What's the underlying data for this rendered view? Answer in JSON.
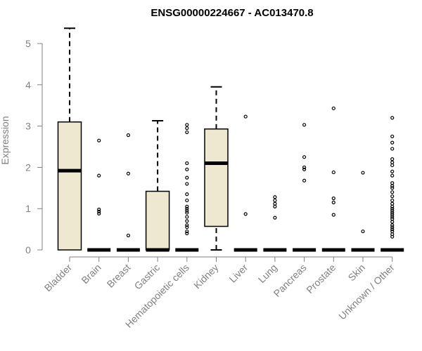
{
  "chart_data": {
    "type": "box",
    "title": "ENSG00000224667 - AC013470.8",
    "ylabel": "Expression",
    "xlabel": "",
    "ylim": [
      0,
      5.5
    ],
    "yticks": [
      0,
      1,
      2,
      3,
      4,
      5
    ],
    "grid": false,
    "box_fill": "#EDE8CF",
    "categories": [
      "Bladder",
      "Brain",
      "Breast",
      "Gastric",
      "Hematopoietic cells",
      "Kidney",
      "Liver",
      "Lung",
      "Pancreas",
      "Prostate",
      "Skin",
      "Unknown / Other"
    ],
    "boxes": [
      {
        "min": 0,
        "q1": 0,
        "median": 1.92,
        "q3": 3.1,
        "max": 5.37,
        "outliers": []
      },
      {
        "min": 0,
        "q1": 0,
        "median": 0,
        "q3": 0,
        "max": 0,
        "outliers": [
          0.88,
          0.93,
          0.98,
          1.8,
          2.65
        ]
      },
      {
        "min": 0,
        "q1": 0,
        "median": 0,
        "q3": 0,
        "max": 0,
        "outliers": [
          0.35,
          1.85,
          2.78
        ]
      },
      {
        "min": 0,
        "q1": 0,
        "median": 0,
        "q3": 1.42,
        "max": 3.13,
        "outliers": []
      },
      {
        "min": 0,
        "q1": 0,
        "median": 0,
        "q3": 0,
        "max": 0,
        "outliers": [
          0.4,
          0.45,
          0.55,
          0.6,
          0.7,
          0.8,
          0.9,
          0.95,
          1.0,
          1.05,
          1.2,
          1.35,
          1.6,
          1.75,
          1.95,
          2.1,
          2.85,
          2.95,
          3.03
        ]
      },
      {
        "min": 0,
        "q1": 0.57,
        "median": 2.1,
        "q3": 2.93,
        "max": 3.95,
        "outliers": []
      },
      {
        "min": 0,
        "q1": 0,
        "median": 0,
        "q3": 0,
        "max": 0,
        "outliers": [
          0.87,
          3.23
        ]
      },
      {
        "min": 0,
        "q1": 0,
        "median": 0,
        "q3": 0,
        "max": 0,
        "outliers": [
          0.78,
          1.05,
          1.12,
          1.2,
          1.28
        ]
      },
      {
        "min": 0,
        "q1": 0,
        "median": 0,
        "q3": 0,
        "max": 0,
        "outliers": [
          1.68,
          1.95,
          2.0,
          2.25,
          3.03
        ]
      },
      {
        "min": 0,
        "q1": 0,
        "median": 0,
        "q3": 0,
        "max": 0,
        "outliers": [
          0.85,
          1.15,
          1.25,
          1.88,
          3.43
        ]
      },
      {
        "min": 0,
        "q1": 0,
        "median": 0,
        "q3": 0,
        "max": 0,
        "outliers": [
          0.45,
          1.87
        ]
      },
      {
        "min": 0,
        "q1": 0,
        "median": 0,
        "q3": 0,
        "max": 0,
        "outliers": [
          0.32,
          0.38,
          0.45,
          0.5,
          0.55,
          0.6,
          0.68,
          0.75,
          0.8,
          0.85,
          0.9,
          0.95,
          1.0,
          1.05,
          1.12,
          1.2,
          1.3,
          1.4,
          1.5,
          1.55,
          1.62,
          1.8,
          1.9,
          2.05,
          2.12,
          2.2,
          2.45,
          2.6,
          2.75,
          3.2
        ]
      }
    ]
  }
}
